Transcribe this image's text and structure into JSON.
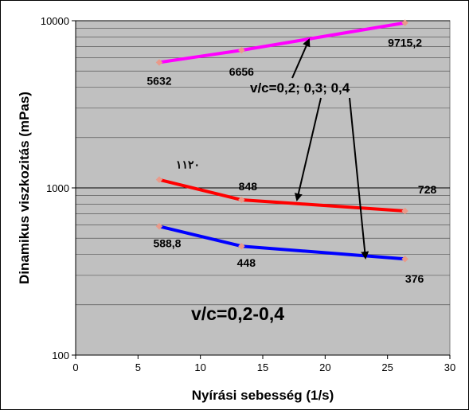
{
  "chart_data": {
    "type": "line",
    "ylabel": "Dinamikus viszkozitás (mPas)",
    "xlabel": "Nyírási sebesség (1/s)",
    "x_scale": "linear",
    "y_scale": "log",
    "xlim": [
      0,
      30
    ],
    "ylim": [
      100,
      10000
    ],
    "x_ticks": [
      "0",
      "5",
      "10",
      "15",
      "20",
      "25",
      "30"
    ],
    "y_ticks": [
      "100",
      "1000",
      "10000"
    ],
    "grid": true,
    "plot_background": "#c0c0c0",
    "series": [
      {
        "color": "#ff00ff",
        "points": [
          {
            "x": 6.7,
            "y": 5632,
            "label": "5632"
          },
          {
            "x": 13.3,
            "y": 6656,
            "label": "6656"
          },
          {
            "x": 26.4,
            "y": 9715.2,
            "label": "9715,2"
          }
        ]
      },
      {
        "color": "#ff0000",
        "points": [
          {
            "x": 6.7,
            "y": 1120,
            "label": "١١٢٠"
          },
          {
            "x": 13.3,
            "y": 848,
            "label": "848"
          },
          {
            "x": 26.4,
            "y": 728,
            "label": "728"
          }
        ]
      },
      {
        "color": "#0000ff",
        "points": [
          {
            "x": 6.7,
            "y": 588.8,
            "label": "588,8"
          },
          {
            "x": 13.3,
            "y": 448,
            "label": "448"
          },
          {
            "x": 26.4,
            "y": 376,
            "label": "376"
          }
        ]
      }
    ],
    "annotations": {
      "arrows_label": "v/c=0,2; 0,3; 0,4",
      "range_label": "v/c=0,2-0,4"
    }
  }
}
